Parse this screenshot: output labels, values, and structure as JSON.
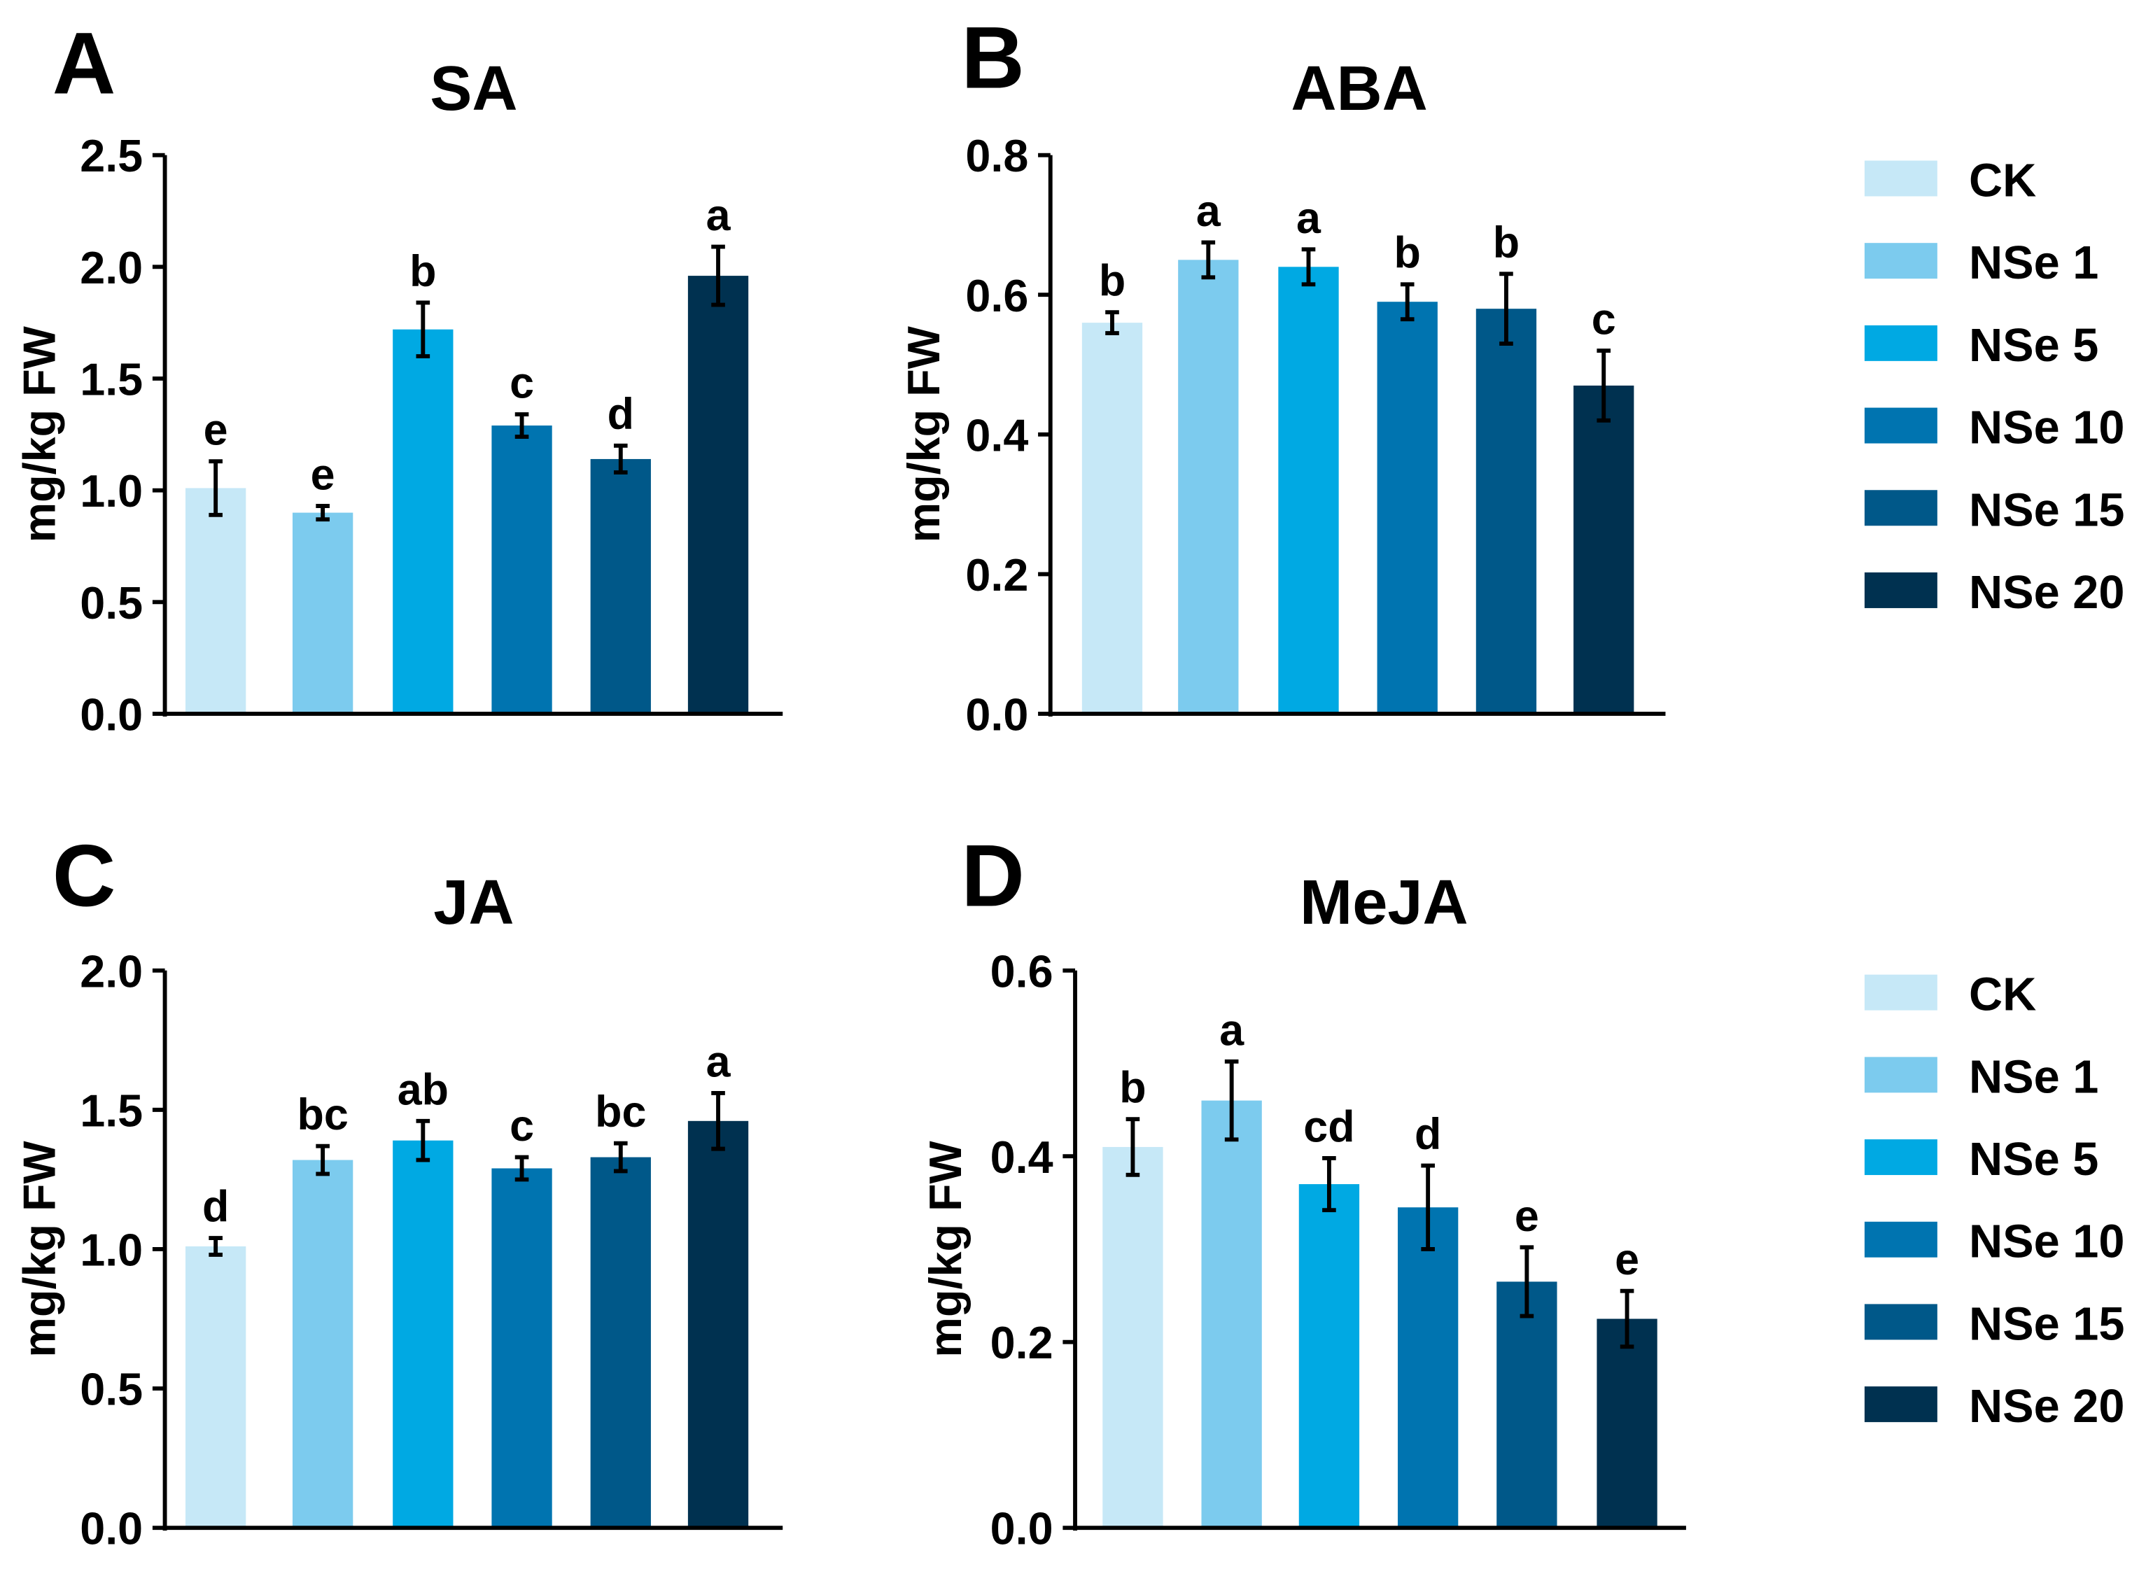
{
  "legend": {
    "entries": [
      "CK",
      "NSe 1",
      "NSe 5",
      "NSe 10",
      "NSe 15",
      "NSe 20"
    ],
    "colors": [
      "#c6e8f7",
      "#7ccbee",
      "#00a9e3",
      "#0074b0",
      "#005889",
      "#003150"
    ]
  },
  "chart_data": [
    {
      "type": "bar",
      "panel": "A",
      "title": "SA",
      "ylabel": "mg/kg FW",
      "ylim": [
        0,
        2.5
      ],
      "yticks": [
        "0.0",
        "0.5",
        "1.0",
        "1.5",
        "2.0",
        "2.5"
      ],
      "categories": [
        "CK",
        "NSe 1",
        "NSe 5",
        "NSe 10",
        "NSe 15",
        "NSe 20"
      ],
      "values": [
        1.01,
        0.9,
        1.72,
        1.29,
        1.14,
        1.96
      ],
      "errors": [
        0.12,
        0.03,
        0.12,
        0.05,
        0.06,
        0.13
      ],
      "letters": [
        "e",
        "e",
        "b",
        "c",
        "d",
        "a"
      ]
    },
    {
      "type": "bar",
      "panel": "B",
      "title": "ABA",
      "ylabel": "mg/kg FW",
      "ylim": [
        0,
        0.8
      ],
      "yticks": [
        "0.0",
        "0.2",
        "0.4",
        "0.6",
        "0.8"
      ],
      "categories": [
        "CK",
        "NSe 1",
        "NSe 5",
        "NSe 10",
        "NSe 15",
        "NSe 20"
      ],
      "values": [
        0.56,
        0.65,
        0.64,
        0.59,
        0.58,
        0.47
      ],
      "errors": [
        0.015,
        0.025,
        0.025,
        0.025,
        0.05,
        0.05
      ],
      "letters": [
        "b",
        "a",
        "a",
        "b",
        "b",
        "c"
      ]
    },
    {
      "type": "bar",
      "panel": "C",
      "title": "JA",
      "ylabel": "mg/kg FW",
      "ylim": [
        0,
        2.0
      ],
      "yticks": [
        "0.0",
        "0.5",
        "1.0",
        "1.5",
        "2.0"
      ],
      "categories": [
        "CK",
        "NSe 1",
        "NSe 5",
        "NSe 10",
        "NSe 15",
        "NSe 20"
      ],
      "values": [
        1.01,
        1.32,
        1.39,
        1.29,
        1.33,
        1.46
      ],
      "errors": [
        0.03,
        0.05,
        0.07,
        0.04,
        0.05,
        0.1
      ],
      "letters": [
        "d",
        "bc",
        "ab",
        "c",
        "bc",
        "a"
      ]
    },
    {
      "type": "bar",
      "panel": "D",
      "title": "MeJA",
      "ylabel": "mg/kg FW",
      "ylim": [
        0,
        0.6
      ],
      "yticks": [
        "0.0",
        "0.2",
        "0.4",
        "0.6"
      ],
      "categories": [
        "CK",
        "NSe 1",
        "NSe 5",
        "NSe 10",
        "NSe 15",
        "NSe 20"
      ],
      "values": [
        0.41,
        0.46,
        0.37,
        0.345,
        0.265,
        0.225
      ],
      "errors": [
        0.03,
        0.042,
        0.028,
        0.045,
        0.037,
        0.03
      ],
      "letters": [
        "b",
        "a",
        "cd",
        "d",
        "e",
        "e"
      ]
    }
  ]
}
